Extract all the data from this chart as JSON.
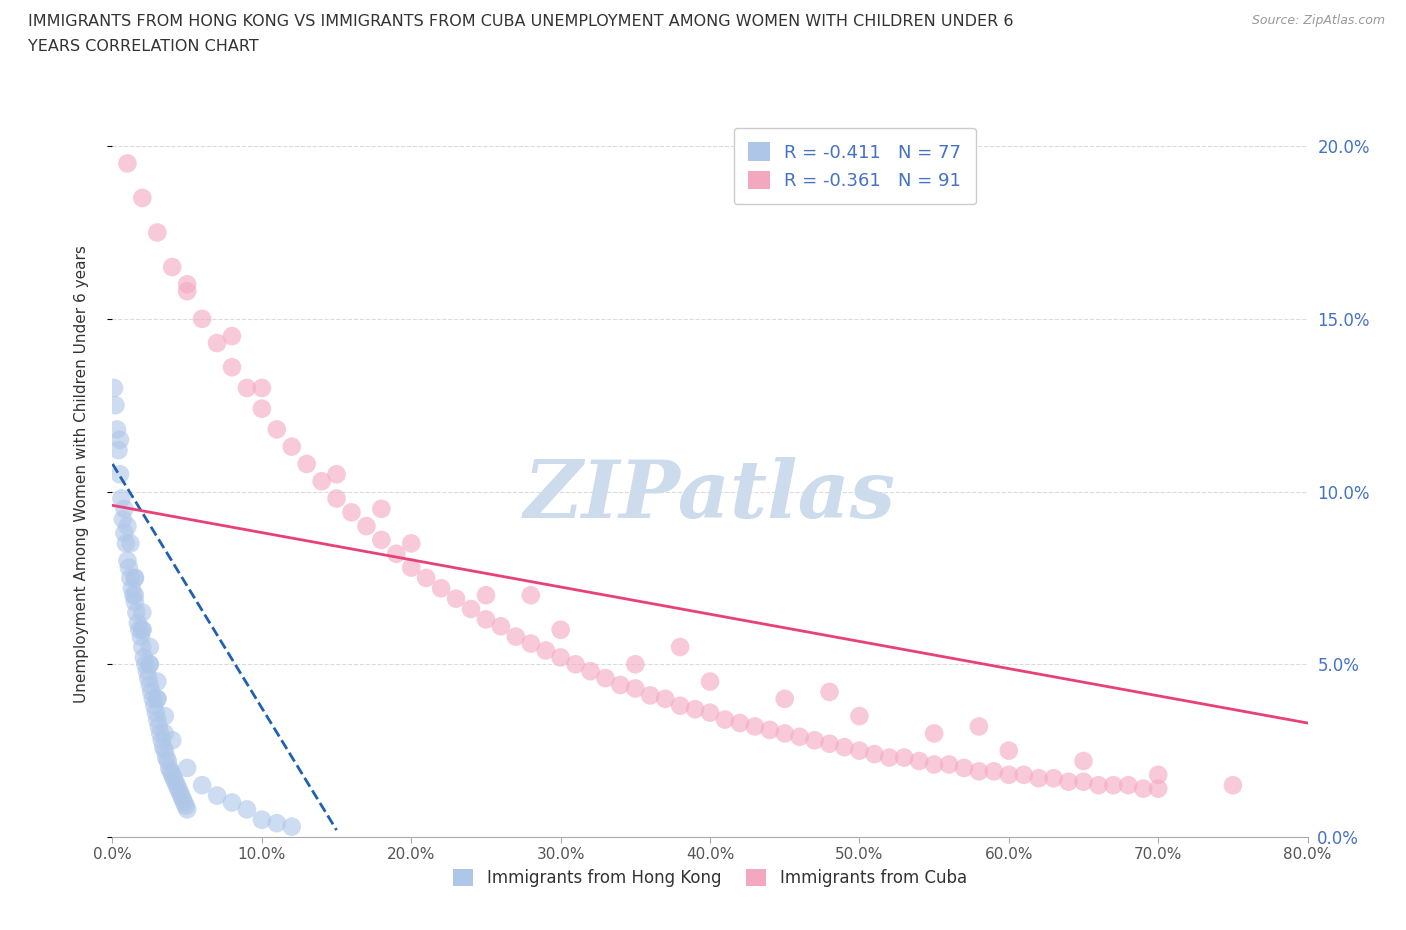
{
  "title_line1": "IMMIGRANTS FROM HONG KONG VS IMMIGRANTS FROM CUBA UNEMPLOYMENT AMONG WOMEN WITH CHILDREN UNDER 6",
  "title_line2": "YEARS CORRELATION CHART",
  "source_text": "Source: ZipAtlas.com",
  "ylabel": "Unemployment Among Women with Children Under 6 years",
  "xlim": [
    0.0,
    0.8
  ],
  "ylim": [
    0.0,
    0.21
  ],
  "xticks": [
    0.0,
    0.1,
    0.2,
    0.3,
    0.4,
    0.5,
    0.6,
    0.7,
    0.8
  ],
  "xtick_labels": [
    "0.0%",
    "10.0%",
    "20.0%",
    "30.0%",
    "40.0%",
    "50.0%",
    "60.0%",
    "70.0%",
    "80.0%"
  ],
  "yticks": [
    0.0,
    0.05,
    0.1,
    0.15,
    0.2
  ],
  "ytick_labels": [
    "0.0%",
    "5.0%",
    "10.0%",
    "15.0%",
    "20.0%"
  ],
  "hk_color": "#aec6e8",
  "cuba_color": "#f4a8c0",
  "hk_line_color": "#2060b0",
  "cuba_line_color": "#e8407a",
  "hk_R": -0.411,
  "hk_N": 77,
  "cuba_R": -0.361,
  "cuba_N": 91,
  "watermark": "ZIPatlas",
  "watermark_color": "#ccdcec",
  "grid_color": "#cccccc",
  "background_color": "#ffffff",
  "legend_edge_color": "#cccccc",
  "legend_text_color": "#4472c4",
  "hk_scatter_x": [
    0.001,
    0.002,
    0.003,
    0.004,
    0.005,
    0.006,
    0.007,
    0.008,
    0.009,
    0.01,
    0.011,
    0.012,
    0.013,
    0.014,
    0.015,
    0.016,
    0.017,
    0.018,
    0.019,
    0.02,
    0.021,
    0.022,
    0.023,
    0.024,
    0.025,
    0.026,
    0.027,
    0.028,
    0.029,
    0.03,
    0.031,
    0.032,
    0.033,
    0.034,
    0.035,
    0.036,
    0.037,
    0.038,
    0.039,
    0.04,
    0.041,
    0.042,
    0.043,
    0.044,
    0.045,
    0.046,
    0.047,
    0.048,
    0.049,
    0.05,
    0.005,
    0.008,
    0.012,
    0.015,
    0.02,
    0.025,
    0.03,
    0.035,
    0.01,
    0.015,
    0.02,
    0.025,
    0.03,
    0.035,
    0.04,
    0.05,
    0.06,
    0.07,
    0.08,
    0.09,
    0.1,
    0.11,
    0.12,
    0.015,
    0.02,
    0.025,
    0.03
  ],
  "hk_scatter_y": [
    0.13,
    0.125,
    0.118,
    0.112,
    0.105,
    0.098,
    0.092,
    0.088,
    0.085,
    0.08,
    0.078,
    0.075,
    0.072,
    0.07,
    0.068,
    0.065,
    0.062,
    0.06,
    0.058,
    0.055,
    0.052,
    0.05,
    0.048,
    0.046,
    0.044,
    0.042,
    0.04,
    0.038,
    0.036,
    0.034,
    0.032,
    0.03,
    0.028,
    0.026,
    0.025,
    0.023,
    0.022,
    0.02,
    0.019,
    0.018,
    0.017,
    0.016,
    0.015,
    0.014,
    0.013,
    0.012,
    0.011,
    0.01,
    0.009,
    0.008,
    0.115,
    0.095,
    0.085,
    0.075,
    0.06,
    0.05,
    0.04,
    0.03,
    0.09,
    0.075,
    0.065,
    0.055,
    0.045,
    0.035,
    0.028,
    0.02,
    0.015,
    0.012,
    0.01,
    0.008,
    0.005,
    0.004,
    0.003,
    0.07,
    0.06,
    0.05,
    0.04
  ],
  "cuba_scatter_x": [
    0.01,
    0.02,
    0.03,
    0.04,
    0.05,
    0.06,
    0.07,
    0.08,
    0.09,
    0.1,
    0.11,
    0.12,
    0.13,
    0.14,
    0.15,
    0.16,
    0.17,
    0.18,
    0.19,
    0.2,
    0.21,
    0.22,
    0.23,
    0.24,
    0.25,
    0.26,
    0.27,
    0.28,
    0.29,
    0.3,
    0.31,
    0.32,
    0.33,
    0.34,
    0.35,
    0.36,
    0.37,
    0.38,
    0.39,
    0.4,
    0.41,
    0.42,
    0.43,
    0.44,
    0.45,
    0.46,
    0.47,
    0.48,
    0.49,
    0.5,
    0.51,
    0.52,
    0.53,
    0.54,
    0.55,
    0.56,
    0.57,
    0.58,
    0.59,
    0.6,
    0.61,
    0.62,
    0.63,
    0.64,
    0.65,
    0.66,
    0.67,
    0.68,
    0.69,
    0.7,
    0.05,
    0.1,
    0.15,
    0.2,
    0.25,
    0.3,
    0.35,
    0.4,
    0.45,
    0.5,
    0.55,
    0.6,
    0.65,
    0.7,
    0.75,
    0.08,
    0.18,
    0.28,
    0.38,
    0.48,
    0.58
  ],
  "cuba_scatter_y": [
    0.195,
    0.185,
    0.175,
    0.165,
    0.158,
    0.15,
    0.143,
    0.136,
    0.13,
    0.124,
    0.118,
    0.113,
    0.108,
    0.103,
    0.098,
    0.094,
    0.09,
    0.086,
    0.082,
    0.078,
    0.075,
    0.072,
    0.069,
    0.066,
    0.063,
    0.061,
    0.058,
    0.056,
    0.054,
    0.052,
    0.05,
    0.048,
    0.046,
    0.044,
    0.043,
    0.041,
    0.04,
    0.038,
    0.037,
    0.036,
    0.034,
    0.033,
    0.032,
    0.031,
    0.03,
    0.029,
    0.028,
    0.027,
    0.026,
    0.025,
    0.024,
    0.023,
    0.023,
    0.022,
    0.021,
    0.021,
    0.02,
    0.019,
    0.019,
    0.018,
    0.018,
    0.017,
    0.017,
    0.016,
    0.016,
    0.015,
    0.015,
    0.015,
    0.014,
    0.014,
    0.16,
    0.13,
    0.105,
    0.085,
    0.07,
    0.06,
    0.05,
    0.045,
    0.04,
    0.035,
    0.03,
    0.025,
    0.022,
    0.018,
    0.015,
    0.145,
    0.095,
    0.07,
    0.055,
    0.042,
    0.032
  ],
  "cuba_line_start_x": 0.0,
  "cuba_line_start_y": 0.096,
  "cuba_line_end_x": 0.8,
  "cuba_line_end_y": 0.033,
  "hk_line_start_x": 0.0,
  "hk_line_start_y": 0.108,
  "hk_line_end_x": 0.15,
  "hk_line_end_y": 0.002
}
